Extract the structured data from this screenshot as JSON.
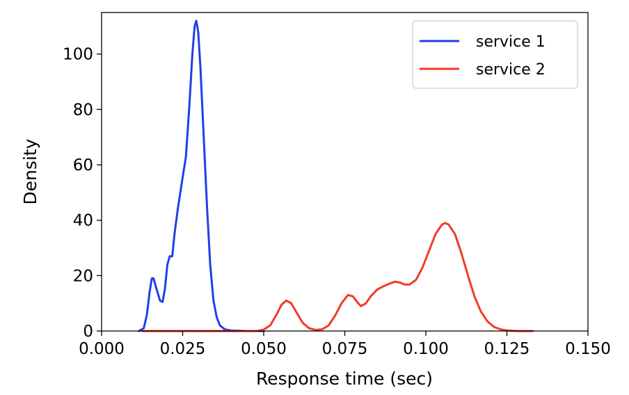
{
  "chart_data": {
    "type": "line",
    "title": "",
    "xlabel": "Response time (sec)",
    "ylabel": "Density",
    "xlim": [
      0.0,
      0.15
    ],
    "ylim": [
      0,
      115
    ],
    "x_ticks": [
      "0.000",
      "0.025",
      "0.050",
      "0.075",
      "0.100",
      "0.125",
      "0.150"
    ],
    "y_ticks": [
      "0",
      "20",
      "40",
      "60",
      "80",
      "100"
    ],
    "grid": false,
    "legend_position": "top-right",
    "series": [
      {
        "name": "service 1",
        "color": "#1f3fe6",
        "points": [
          [
            0.0115,
            0
          ],
          [
            0.013,
            1
          ],
          [
            0.014,
            6
          ],
          [
            0.0148,
            14
          ],
          [
            0.0155,
            19
          ],
          [
            0.016,
            19
          ],
          [
            0.017,
            15
          ],
          [
            0.018,
            11
          ],
          [
            0.0188,
            10.5
          ],
          [
            0.0195,
            15
          ],
          [
            0.0203,
            24
          ],
          [
            0.021,
            27
          ],
          [
            0.0218,
            27
          ],
          [
            0.0225,
            35
          ],
          [
            0.0235,
            44
          ],
          [
            0.0248,
            54
          ],
          [
            0.026,
            63
          ],
          [
            0.027,
            80
          ],
          [
            0.028,
            100
          ],
          [
            0.0287,
            110
          ],
          [
            0.0292,
            112
          ],
          [
            0.0298,
            108
          ],
          [
            0.0305,
            95
          ],
          [
            0.0315,
            70
          ],
          [
            0.0325,
            45
          ],
          [
            0.0335,
            24
          ],
          [
            0.0345,
            11
          ],
          [
            0.0355,
            5
          ],
          [
            0.0365,
            2
          ],
          [
            0.038,
            0.6
          ],
          [
            0.04,
            0.2
          ],
          [
            0.045,
            0
          ],
          [
            0.05,
            0
          ]
        ]
      },
      {
        "name": "service 2",
        "color": "#f03a2a",
        "points": [
          [
            0.0125,
            0
          ],
          [
            0.03,
            0
          ],
          [
            0.048,
            0
          ],
          [
            0.05,
            0.5
          ],
          [
            0.052,
            2
          ],
          [
            0.054,
            6
          ],
          [
            0.0555,
            9.5
          ],
          [
            0.057,
            11
          ],
          [
            0.0585,
            10
          ],
          [
            0.06,
            7
          ],
          [
            0.062,
            3
          ],
          [
            0.064,
            1
          ],
          [
            0.066,
            0.4
          ],
          [
            0.068,
            0.6
          ],
          [
            0.07,
            2
          ],
          [
            0.072,
            5.5
          ],
          [
            0.074,
            10
          ],
          [
            0.076,
            13
          ],
          [
            0.0775,
            12.5
          ],
          [
            0.0788,
            10.5
          ],
          [
            0.08,
            9
          ],
          [
            0.0815,
            10
          ],
          [
            0.083,
            12.5
          ],
          [
            0.085,
            15
          ],
          [
            0.087,
            16.2
          ],
          [
            0.089,
            17.2
          ],
          [
            0.0905,
            17.8
          ],
          [
            0.092,
            17.5
          ],
          [
            0.0935,
            16.8
          ],
          [
            0.095,
            16.8
          ],
          [
            0.097,
            18.5
          ],
          [
            0.099,
            23
          ],
          [
            0.101,
            29
          ],
          [
            0.103,
            35
          ],
          [
            0.105,
            38.5
          ],
          [
            0.106,
            39
          ],
          [
            0.107,
            38.5
          ],
          [
            0.109,
            35
          ],
          [
            0.111,
            28
          ],
          [
            0.113,
            20
          ],
          [
            0.115,
            12.5
          ],
          [
            0.117,
            7
          ],
          [
            0.119,
            3.5
          ],
          [
            0.121,
            1.5
          ],
          [
            0.123,
            0.6
          ],
          [
            0.125,
            0.2
          ],
          [
            0.128,
            0
          ],
          [
            0.133,
            0
          ]
        ]
      }
    ]
  }
}
